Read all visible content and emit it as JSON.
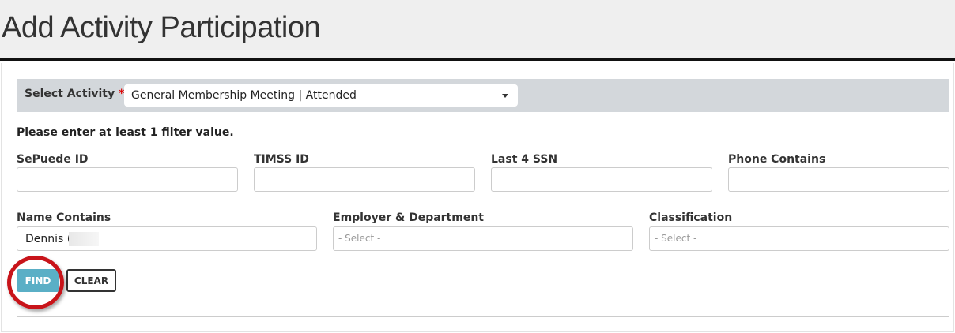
{
  "header": {
    "title": "Add Activity Participation"
  },
  "activity": {
    "label": "Select Activity",
    "required": "*",
    "value": "General Membership Meeting | Attended"
  },
  "message": "Please enter at least 1 filter value.",
  "fields": {
    "sepuede": {
      "label": "SePuede ID",
      "value": ""
    },
    "timss": {
      "label": "TIMSS ID",
      "value": ""
    },
    "ssn": {
      "label": "Last 4 SSN",
      "value": ""
    },
    "phone": {
      "label": "Phone Contains",
      "value": ""
    },
    "name": {
      "label": "Name Contains",
      "value": "Dennis ("
    },
    "employer": {
      "label": "Employer & Department",
      "placeholder": "- Select -"
    },
    "classification": {
      "label": "Classification",
      "placeholder": "- Select -"
    }
  },
  "buttons": {
    "find": "FIND",
    "clear": "CLEAR"
  },
  "colors": {
    "find_button": "#5aafc6",
    "highlight_ring": "#c8141a",
    "activity_bar": "#d3d7db"
  }
}
